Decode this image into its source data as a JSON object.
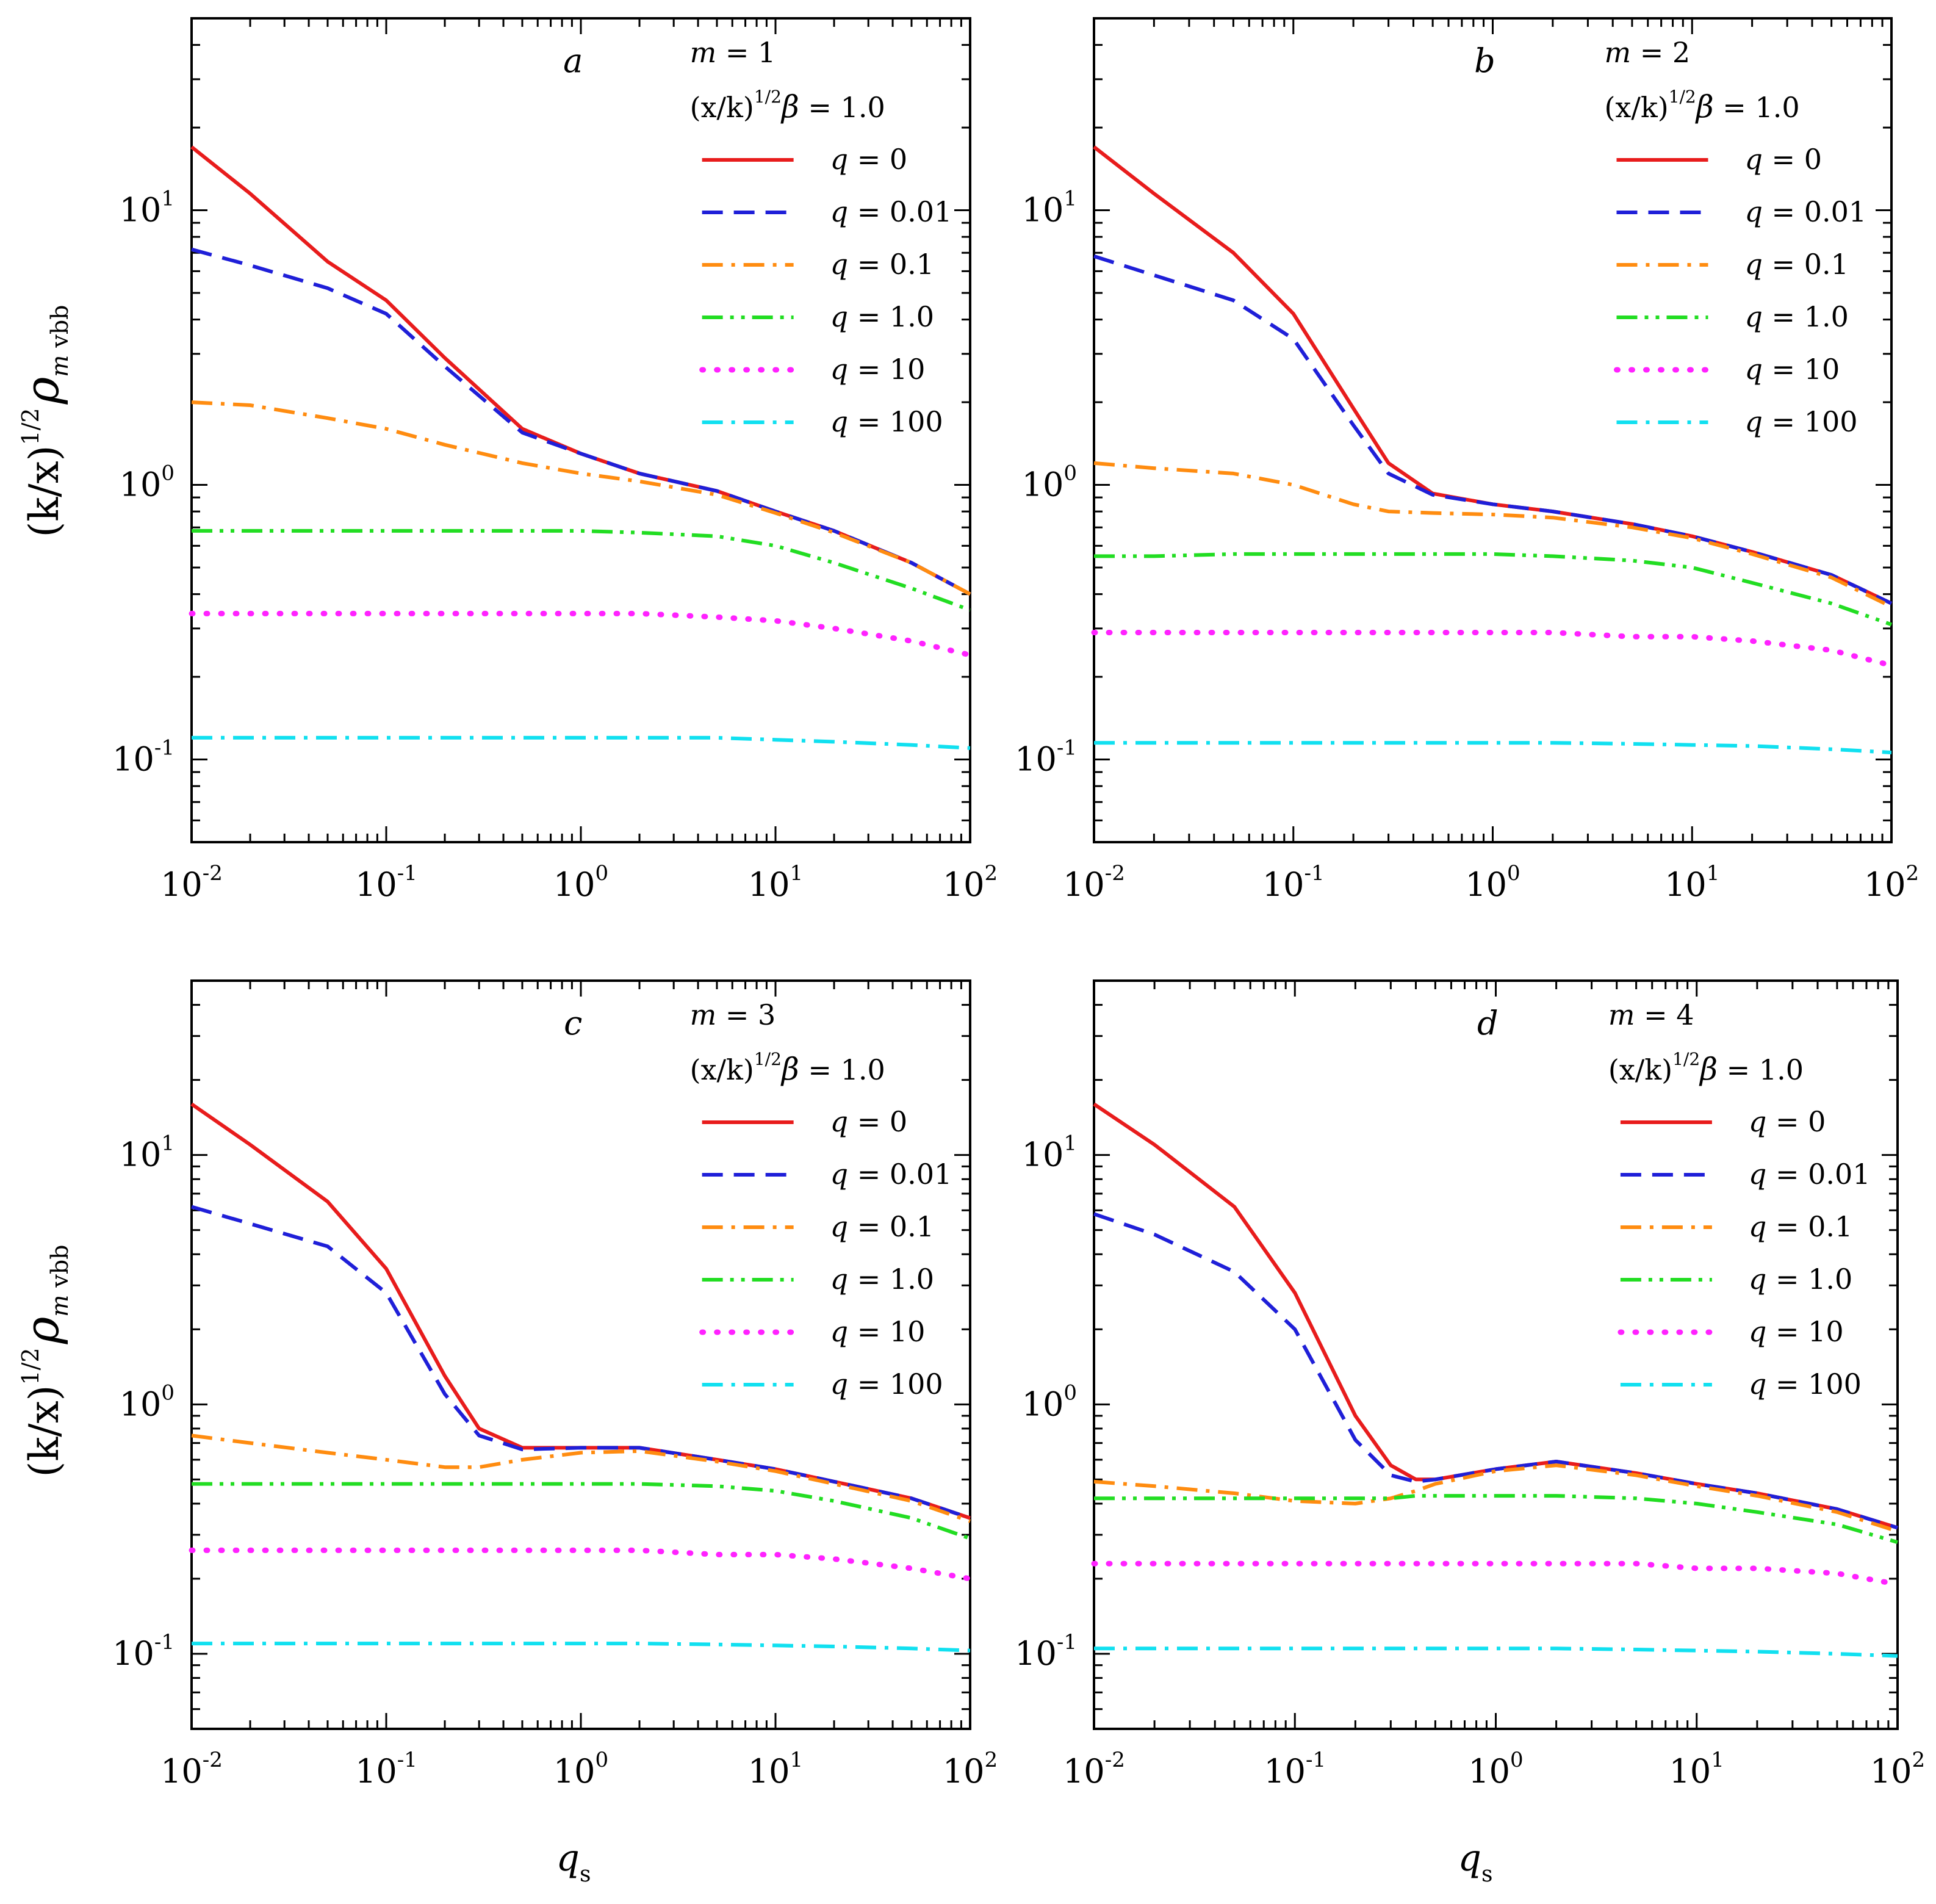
{
  "figure": {
    "ylabel": {
      "base": "(k/x)",
      "sup": "1/2",
      "rho": "ρ",
      "sub_m": "m",
      "sub_rest": " vbb"
    },
    "xlabel": {
      "base": "q",
      "sub": "s"
    },
    "legend_param": {
      "base": "(x/k)",
      "sup": "1/2",
      "beta": "β",
      "rest": " = 1.0"
    }
  },
  "chart_data": [
    {
      "type": "line",
      "panel_label": "a",
      "m_text": "m = 1",
      "x_scale": "log",
      "y_scale": "log",
      "xlim": [
        0.01,
        100
      ],
      "ylim": [
        0.05,
        50
      ],
      "xtick_labels": [
        {
          "base": "10",
          "exp": "-2"
        },
        {
          "base": "10",
          "exp": "-1"
        },
        {
          "base": "10",
          "exp": "0"
        },
        {
          "base": "10",
          "exp": "1"
        },
        {
          "base": "10",
          "exp": "2"
        }
      ],
      "ytick_labels": [
        {
          "base": "10",
          "exp": "-1"
        },
        {
          "base": "10",
          "exp": "0"
        },
        {
          "base": "10",
          "exp": "1"
        }
      ],
      "x": [
        0.01,
        0.02,
        0.05,
        0.1,
        0.2,
        0.5,
        1,
        2,
        5,
        10,
        20,
        50,
        100
      ],
      "series": [
        {
          "name": "q = 0",
          "color": "#e81c1c",
          "dash": "solid",
          "values": [
            17,
            11.5,
            6.5,
            4.7,
            2.9,
            1.6,
            1.3,
            1.1,
            0.95,
            0.8,
            0.68,
            0.52,
            0.4
          ]
        },
        {
          "name": "q = 0.01",
          "color": "#1f1fd8",
          "dash": "dash",
          "values": [
            7.2,
            6.3,
            5.2,
            4.2,
            2.7,
            1.55,
            1.3,
            1.1,
            0.95,
            0.8,
            0.68,
            0.52,
            0.4
          ]
        },
        {
          "name": "q = 0.1",
          "color": "#ff8c10",
          "dash": "dashdot",
          "values": [
            2.0,
            1.95,
            1.75,
            1.6,
            1.4,
            1.2,
            1.1,
            1.03,
            0.92,
            0.79,
            0.67,
            0.52,
            0.4
          ]
        },
        {
          "name": "q = 1.0",
          "color": "#22dd22",
          "dash": "dashdotdot",
          "values": [
            0.68,
            0.68,
            0.68,
            0.68,
            0.68,
            0.68,
            0.68,
            0.67,
            0.65,
            0.6,
            0.52,
            0.42,
            0.35
          ]
        },
        {
          "name": "q = 10",
          "color": "#ff22ff",
          "dash": "dot",
          "values": [
            0.34,
            0.34,
            0.34,
            0.34,
            0.34,
            0.34,
            0.34,
            0.34,
            0.33,
            0.32,
            0.3,
            0.27,
            0.24
          ]
        },
        {
          "name": "q = 100",
          "color": "#11e0f0",
          "dash": "dashdot",
          "values": [
            0.12,
            0.12,
            0.12,
            0.12,
            0.12,
            0.12,
            0.12,
            0.12,
            0.12,
            0.118,
            0.116,
            0.113,
            0.11
          ]
        }
      ]
    },
    {
      "type": "line",
      "panel_label": "b",
      "m_text": "m = 2",
      "x_scale": "log",
      "y_scale": "log",
      "xlim": [
        0.01,
        100
      ],
      "ylim": [
        0.05,
        50
      ],
      "xtick_labels": [
        {
          "base": "10",
          "exp": "-2"
        },
        {
          "base": "10",
          "exp": "-1"
        },
        {
          "base": "10",
          "exp": "0"
        },
        {
          "base": "10",
          "exp": "1"
        },
        {
          "base": "10",
          "exp": "2"
        }
      ],
      "ytick_labels": [
        {
          "base": "10",
          "exp": "-1"
        },
        {
          "base": "10",
          "exp": "0"
        },
        {
          "base": "10",
          "exp": "1"
        }
      ],
      "x": [
        0.01,
        0.02,
        0.05,
        0.1,
        0.2,
        0.3,
        0.5,
        1,
        2,
        5,
        10,
        20,
        50,
        100
      ],
      "series": [
        {
          "name": "q = 0",
          "color": "#e81c1c",
          "dash": "solid",
          "values": [
            17,
            11.5,
            7,
            4.2,
            1.9,
            1.2,
            0.93,
            0.85,
            0.8,
            0.72,
            0.65,
            0.57,
            0.47,
            0.37
          ]
        },
        {
          "name": "q = 0.01",
          "color": "#1f1fd8",
          "dash": "dash",
          "values": [
            6.8,
            5.8,
            4.7,
            3.4,
            1.65,
            1.1,
            0.92,
            0.85,
            0.8,
            0.72,
            0.65,
            0.57,
            0.47,
            0.37
          ]
        },
        {
          "name": "q = 0.1",
          "color": "#ff8c10",
          "dash": "dashdot",
          "values": [
            1.2,
            1.15,
            1.1,
            1.0,
            0.85,
            0.8,
            0.79,
            0.78,
            0.76,
            0.7,
            0.64,
            0.56,
            0.46,
            0.36
          ]
        },
        {
          "name": "q = 1.0",
          "color": "#22dd22",
          "dash": "dashdotdot",
          "values": [
            0.55,
            0.55,
            0.56,
            0.56,
            0.56,
            0.56,
            0.56,
            0.56,
            0.55,
            0.53,
            0.5,
            0.44,
            0.37,
            0.31
          ]
        },
        {
          "name": "q = 10",
          "color": "#ff22ff",
          "dash": "dot",
          "values": [
            0.29,
            0.29,
            0.29,
            0.29,
            0.29,
            0.29,
            0.29,
            0.29,
            0.29,
            0.28,
            0.28,
            0.27,
            0.25,
            0.22
          ]
        },
        {
          "name": "q = 100",
          "color": "#11e0f0",
          "dash": "dashdot",
          "values": [
            0.115,
            0.115,
            0.115,
            0.115,
            0.115,
            0.115,
            0.115,
            0.115,
            0.115,
            0.114,
            0.113,
            0.112,
            0.109,
            0.106
          ]
        }
      ]
    },
    {
      "type": "line",
      "panel_label": "c",
      "m_text": "m = 3",
      "x_scale": "log",
      "y_scale": "log",
      "xlim": [
        0.01,
        100
      ],
      "ylim": [
        0.05,
        50
      ],
      "xtick_labels": [
        {
          "base": "10",
          "exp": "-2"
        },
        {
          "base": "10",
          "exp": "-1"
        },
        {
          "base": "10",
          "exp": "0"
        },
        {
          "base": "10",
          "exp": "1"
        },
        {
          "base": "10",
          "exp": "2"
        }
      ],
      "ytick_labels": [
        {
          "base": "10",
          "exp": "-1"
        },
        {
          "base": "10",
          "exp": "0"
        },
        {
          "base": "10",
          "exp": "1"
        }
      ],
      "x": [
        0.01,
        0.02,
        0.05,
        0.1,
        0.2,
        0.3,
        0.5,
        1,
        2,
        5,
        10,
        20,
        50,
        100
      ],
      "series": [
        {
          "name": "q = 0",
          "color": "#e81c1c",
          "dash": "solid",
          "values": [
            16,
            11,
            6.5,
            3.5,
            1.3,
            0.8,
            0.67,
            0.67,
            0.67,
            0.6,
            0.55,
            0.49,
            0.42,
            0.35
          ]
        },
        {
          "name": "q = 0.01",
          "color": "#1f1fd8",
          "dash": "dash",
          "values": [
            6.2,
            5.3,
            4.3,
            2.8,
            1.1,
            0.75,
            0.66,
            0.67,
            0.67,
            0.6,
            0.55,
            0.49,
            0.42,
            0.35
          ]
        },
        {
          "name": "q = 0.1",
          "color": "#ff8c10",
          "dash": "dashdot",
          "values": [
            0.75,
            0.7,
            0.64,
            0.6,
            0.56,
            0.56,
            0.6,
            0.64,
            0.65,
            0.59,
            0.54,
            0.48,
            0.41,
            0.34
          ]
        },
        {
          "name": "q = 1.0",
          "color": "#22dd22",
          "dash": "dashdotdot",
          "values": [
            0.48,
            0.48,
            0.48,
            0.48,
            0.48,
            0.48,
            0.48,
            0.48,
            0.48,
            0.47,
            0.45,
            0.41,
            0.35,
            0.29
          ]
        },
        {
          "name": "q = 10",
          "color": "#ff22ff",
          "dash": "dot",
          "values": [
            0.26,
            0.26,
            0.26,
            0.26,
            0.26,
            0.26,
            0.26,
            0.26,
            0.26,
            0.25,
            0.25,
            0.24,
            0.22,
            0.2
          ]
        },
        {
          "name": "q = 100",
          "color": "#11e0f0",
          "dash": "dashdot",
          "values": [
            0.11,
            0.11,
            0.11,
            0.11,
            0.11,
            0.11,
            0.11,
            0.11,
            0.11,
            0.109,
            0.108,
            0.107,
            0.105,
            0.103
          ]
        }
      ]
    },
    {
      "type": "line",
      "panel_label": "d",
      "m_text": "m = 4",
      "x_scale": "log",
      "y_scale": "log",
      "xlim": [
        0.01,
        100
      ],
      "ylim": [
        0.05,
        50
      ],
      "xtick_labels": [
        {
          "base": "10",
          "exp": "-2"
        },
        {
          "base": "10",
          "exp": "-1"
        },
        {
          "base": "10",
          "exp": "0"
        },
        {
          "base": "10",
          "exp": "1"
        },
        {
          "base": "10",
          "exp": "2"
        }
      ],
      "ytick_labels": [
        {
          "base": "10",
          "exp": "-1"
        },
        {
          "base": "10",
          "exp": "0"
        },
        {
          "base": "10",
          "exp": "1"
        }
      ],
      "x": [
        0.01,
        0.02,
        0.05,
        0.1,
        0.2,
        0.3,
        0.4,
        0.5,
        1,
        2,
        5,
        10,
        20,
        50,
        100
      ],
      "series": [
        {
          "name": "q = 0",
          "color": "#e81c1c",
          "dash": "solid",
          "values": [
            16,
            11,
            6.2,
            2.8,
            0.9,
            0.57,
            0.5,
            0.5,
            0.55,
            0.59,
            0.53,
            0.48,
            0.44,
            0.38,
            0.32
          ]
        },
        {
          "name": "q = 0.01",
          "color": "#1f1fd8",
          "dash": "dash",
          "values": [
            5.8,
            4.8,
            3.4,
            2.0,
            0.72,
            0.52,
            0.49,
            0.5,
            0.55,
            0.59,
            0.53,
            0.48,
            0.44,
            0.38,
            0.32
          ]
        },
        {
          "name": "q = 0.1",
          "color": "#ff8c10",
          "dash": "dashdot",
          "values": [
            0.49,
            0.47,
            0.44,
            0.41,
            0.4,
            0.42,
            0.45,
            0.48,
            0.54,
            0.57,
            0.52,
            0.47,
            0.43,
            0.37,
            0.31
          ]
        },
        {
          "name": "q = 1.0",
          "color": "#22dd22",
          "dash": "dashdotdot",
          "values": [
            0.42,
            0.42,
            0.42,
            0.42,
            0.42,
            0.42,
            0.43,
            0.43,
            0.43,
            0.43,
            0.42,
            0.4,
            0.37,
            0.33,
            0.28
          ]
        },
        {
          "name": "q = 10",
          "color": "#ff22ff",
          "dash": "dot",
          "values": [
            0.23,
            0.23,
            0.23,
            0.23,
            0.23,
            0.23,
            0.23,
            0.23,
            0.23,
            0.23,
            0.23,
            0.22,
            0.22,
            0.21,
            0.19
          ]
        },
        {
          "name": "q = 100",
          "color": "#11e0f0",
          "dash": "dashdot",
          "values": [
            0.105,
            0.105,
            0.105,
            0.105,
            0.105,
            0.105,
            0.105,
            0.105,
            0.105,
            0.105,
            0.104,
            0.103,
            0.102,
            0.1,
            0.098
          ]
        }
      ]
    }
  ]
}
